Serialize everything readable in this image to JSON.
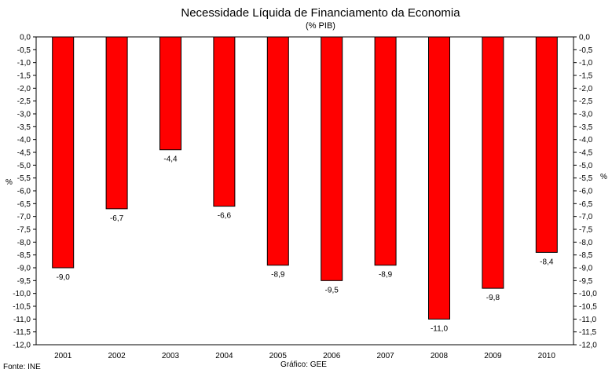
{
  "chart_data": {
    "type": "bar",
    "title": "Necessidade Líquida de Financiamento da Economia",
    "subtitle": "(% PIB)",
    "ylabel_left": "%",
    "ylabel_right": "%",
    "categories": [
      "2001",
      "2002",
      "2003",
      "2004",
      "2005",
      "2006",
      "2007",
      "2008",
      "2009",
      "2010"
    ],
    "values": [
      -9.0,
      -6.7,
      -4.4,
      -6.6,
      -8.9,
      -9.5,
      -8.9,
      -11.0,
      -9.8,
      -8.4
    ],
    "value_labels": [
      "-9,0",
      "-6,7",
      "-4,4",
      "-6,6",
      "-8,9",
      "-9,5",
      "-8,9",
      "-11,0",
      "-9,8",
      "-8,4"
    ],
    "ylim": [
      -12.0,
      0.0
    ],
    "ytick_step": 0.5,
    "bar_color": "#ff0000",
    "grid": false,
    "legend": "none"
  },
  "footer": {
    "source": "Fonte: INE",
    "credit": "Gráfico: GEE"
  }
}
